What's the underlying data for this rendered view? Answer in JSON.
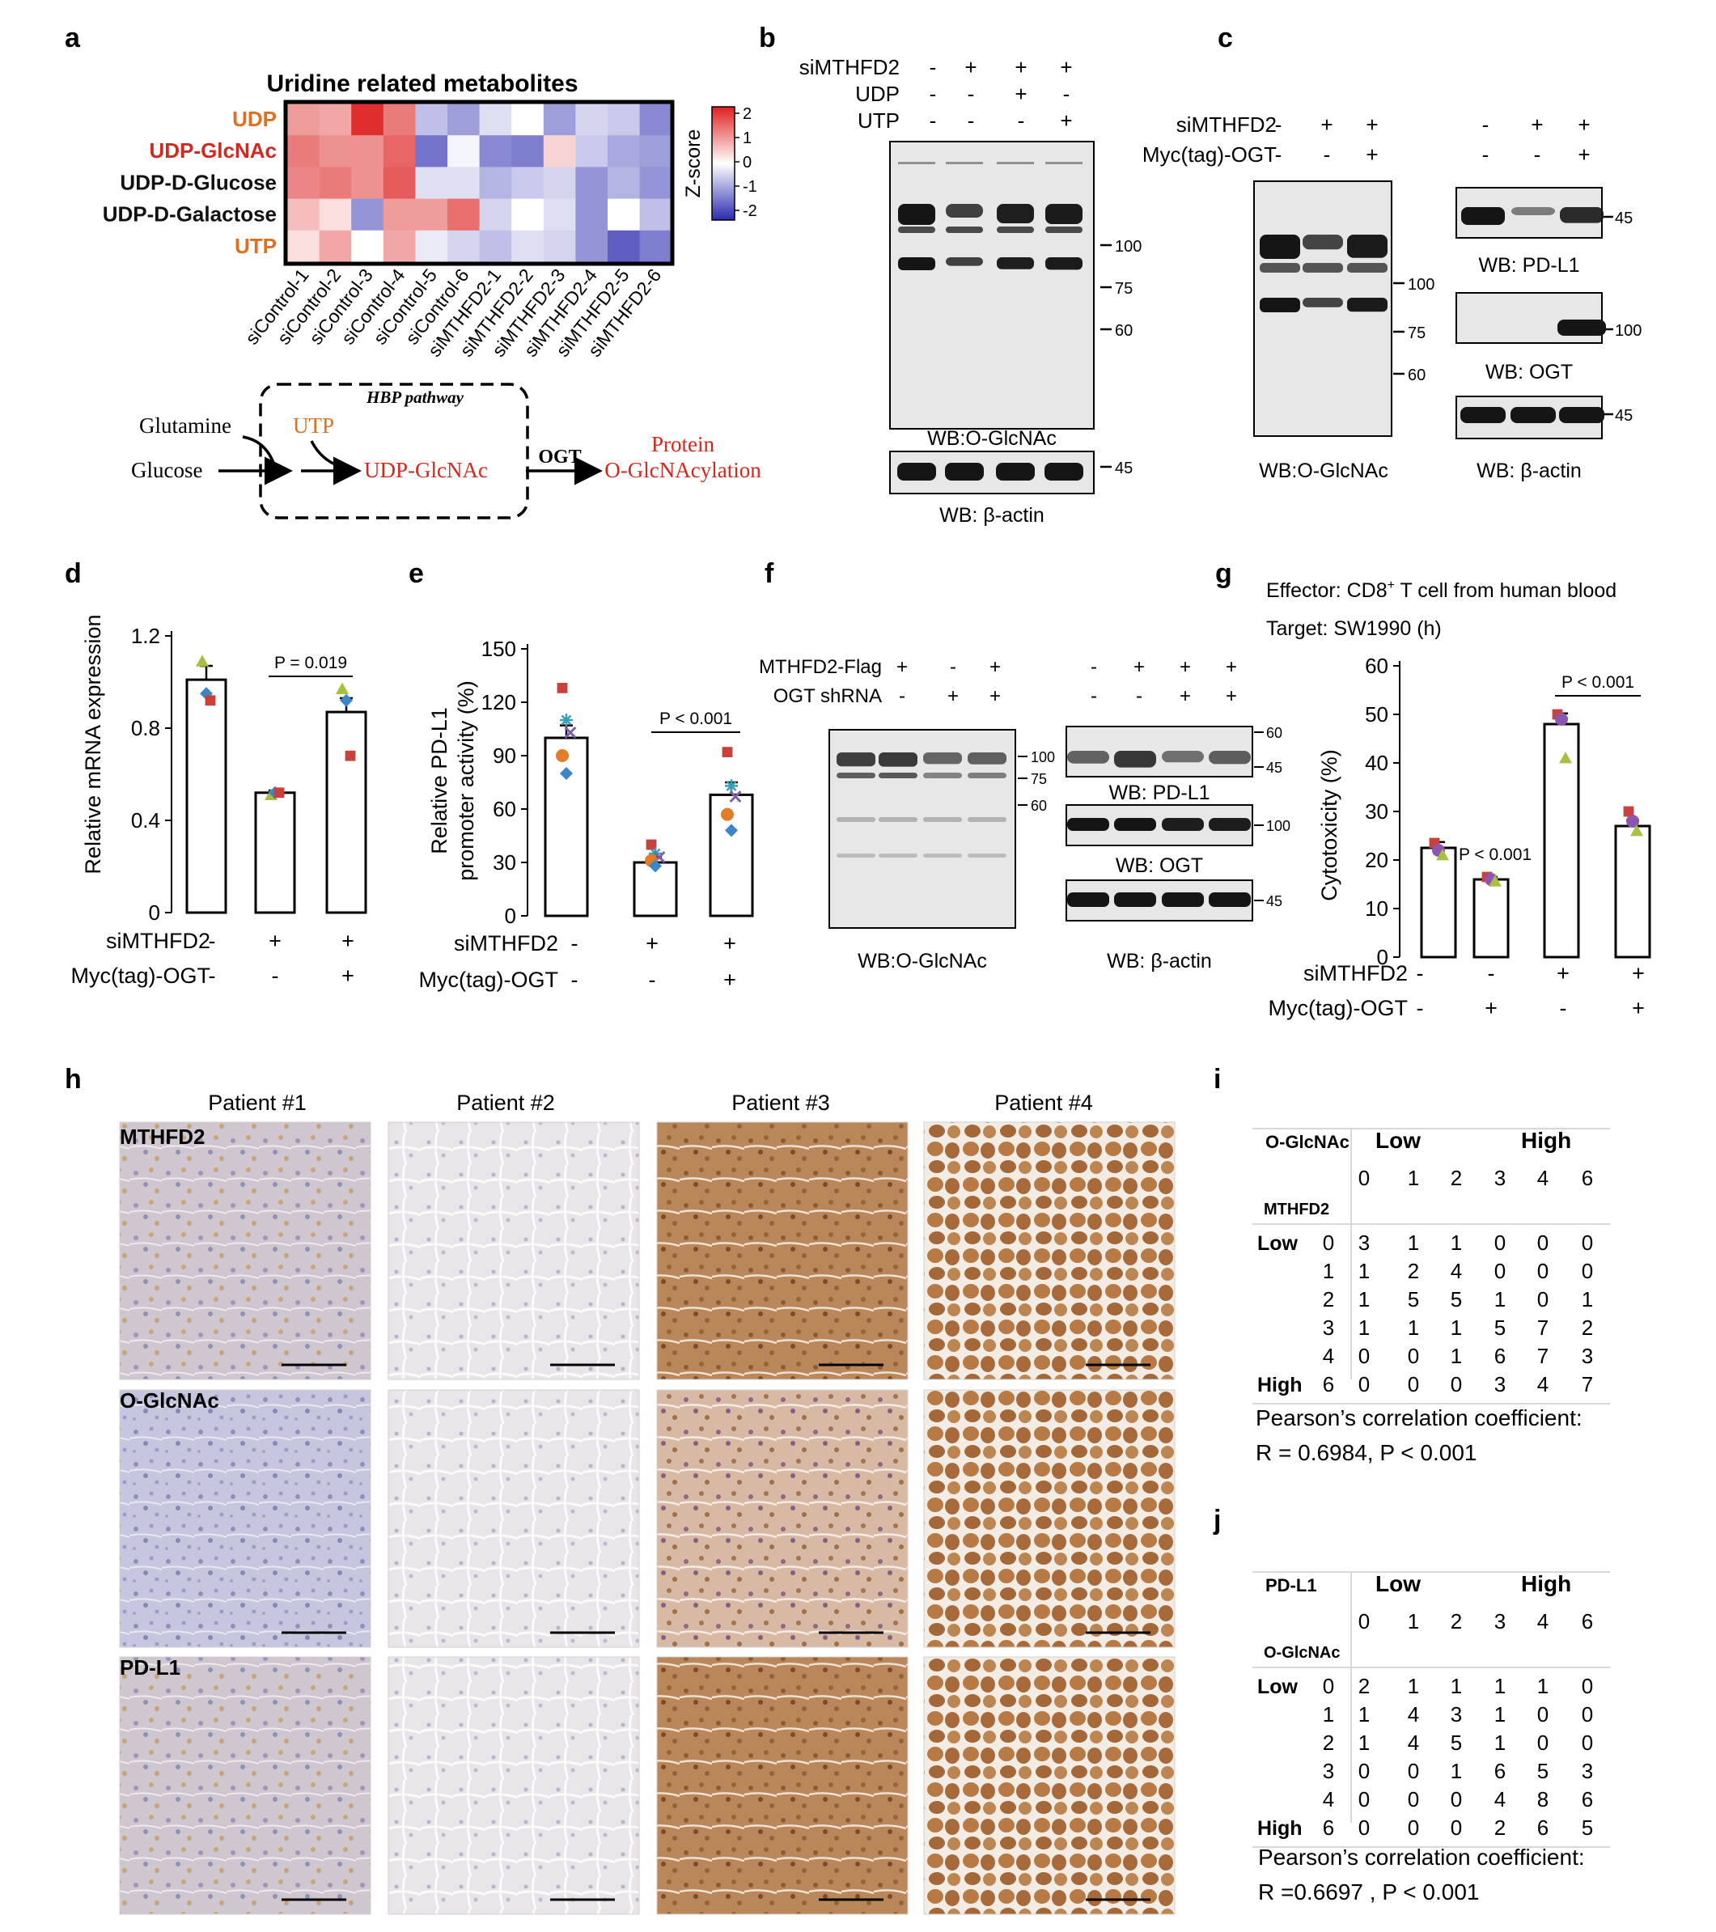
{
  "panel_labels": [
    "a",
    "b",
    "c",
    "d",
    "e",
    "f",
    "g",
    "h",
    "i",
    "j"
  ],
  "a": {
    "title": "Uridine related metabolites",
    "rows": [
      "UDP",
      "UDP-GlcNAc",
      "UDP-D-Glucose",
      "UDP-D-Galactose",
      "UTP"
    ],
    "row_colors": [
      "#e07020",
      "#d02a20",
      "#111111",
      "#111111",
      "#e07020"
    ],
    "columns": [
      "siControl-1",
      "siControl-2",
      "siControl-3",
      "siControl-4",
      "siControl-5",
      "siControl-6",
      "siMTHFD2-1",
      "siMTHFD2-2",
      "siMTHFD2-3",
      "siMTHFD2-4",
      "siMTHFD2-5",
      "siMTHFD2-6"
    ],
    "zscores": [
      [
        0.9,
        0.8,
        1.9,
        1.2,
        -0.6,
        -0.9,
        -0.3,
        0.0,
        -0.9,
        -0.4,
        -0.5,
        -1.1
      ],
      [
        1.2,
        1.0,
        1.0,
        1.4,
        -1.3,
        -0.1,
        -1.1,
        -1.2,
        0.4,
        -0.5,
        -0.8,
        -0.9
      ],
      [
        1.1,
        1.2,
        1.0,
        1.5,
        -0.3,
        -0.3,
        -0.7,
        -0.5,
        -0.4,
        -1.0,
        -0.7,
        -1.0
      ],
      [
        0.6,
        0.3,
        -1.0,
        0.9,
        0.9,
        1.3,
        -0.4,
        0.0,
        -0.3,
        -1.0,
        0.0,
        -0.6
      ],
      [
        0.3,
        0.8,
        0.0,
        0.8,
        -0.2,
        -0.4,
        -0.6,
        -0.3,
        -0.4,
        -1.0,
        -1.5,
        -1.2
      ]
    ],
    "legend_title": "Z-score",
    "legend_ticks": [
      "2",
      "1",
      "0",
      "-1",
      "-2"
    ],
    "pathway": {
      "box_label": "HBP pathway",
      "glutamine": "Glutamine",
      "glucose": "Glucose",
      "utp": "UTP",
      "udp_glcnac": "UDP-GlcNAc",
      "ogt": "OGT",
      "protein": "Protein",
      "oglcnacylation": "O-GlcNAcylation"
    }
  },
  "b": {
    "rows": [
      {
        "label": "siMTHFD2",
        "signs": [
          "-",
          "+",
          "+",
          "+"
        ]
      },
      {
        "label": "UDP",
        "signs": [
          "-",
          "-",
          "+",
          "-"
        ]
      },
      {
        "label": "UTP",
        "signs": [
          "-",
          "-",
          "-",
          "+"
        ]
      }
    ],
    "markers": [
      "100",
      "75",
      "60"
    ],
    "actin_marker": "45",
    "caption1": "WB:O-GlcNAc",
    "caption2": "WB: β-actin"
  },
  "c": {
    "rows": [
      {
        "label": "siMTHFD2",
        "signs": [
          "-",
          "+",
          "+"
        ]
      },
      {
        "label": "Myc(tag)-OGT",
        "signs": [
          "-",
          "-",
          "+"
        ]
      }
    ],
    "right_signs": [
      [
        "-",
        "+",
        "+"
      ],
      [
        "-",
        "-",
        "+"
      ]
    ],
    "markers": [
      "100",
      "75",
      "60"
    ],
    "pdl1_marker": "45",
    "ogt_marker": "100",
    "actin_marker": "45",
    "cap_oglcnac": "WB:O-GlcNAc",
    "cap_pdl1": "WB: PD-L1",
    "cap_ogt": "WB: OGT",
    "cap_actin": "WB: β-actin"
  },
  "d": {
    "ylabel": "Relative mRNA expression",
    "yticks": [
      "0",
      "0.4",
      "0.8",
      "1.2"
    ],
    "pvalue": "P = 0.019",
    "rows": [
      {
        "label": "siMTHFD2",
        "signs": [
          "-",
          "+",
          "+"
        ]
      },
      {
        "label": "Myc(tag)-OGT",
        "signs": [
          "-",
          "-",
          "+"
        ]
      }
    ]
  },
  "e": {
    "ylabel": "Relative PD-L1 promoter activity (%)",
    "ylabel_line1": "Relative PD-L1",
    "ylabel_line2": "promoter activity (%)",
    "yticks": [
      "0",
      "30",
      "60",
      "90",
      "120",
      "150"
    ],
    "pvalue": "P < 0.001",
    "rows": [
      {
        "label": "siMTHFD2",
        "signs": [
          "-",
          "+",
          "+"
        ]
      },
      {
        "label": "Myc(tag)-OGT",
        "signs": [
          "-",
          "-",
          "+"
        ]
      }
    ]
  },
  "f": {
    "rows": [
      {
        "label": "MTHFD2-Flag",
        "signs": [
          "+",
          "-",
          "+"
        ]
      },
      {
        "label": "OGT shRNA",
        "signs": [
          "-",
          "+",
          "+"
        ]
      }
    ],
    "right_signs": [
      [
        "-",
        "+",
        "+",
        "+"
      ],
      [
        "-",
        "-",
        "+",
        "+"
      ]
    ],
    "markers": [
      "100",
      "75",
      "60"
    ],
    "pdl1_markers": [
      "60",
      "45"
    ],
    "ogt_marker": "100",
    "actin_marker": "45",
    "cap_oglcnac": "WB:O-GlcNAc",
    "cap_pdl1": "WB: PD-L1",
    "cap_ogt": "WB: OGT",
    "cap_actin": "WB: β-actin"
  },
  "g": {
    "effector": "Effector: CD8",
    "effector_sup": "+",
    "effector_rest": " T cell from human blood",
    "target": "Target: SW1990 (h)",
    "ylabel": "Cytotoxicity (%)",
    "yticks": [
      "0",
      "10",
      "20",
      "30",
      "40",
      "50",
      "60"
    ],
    "p1": "P < 0.001",
    "p2": "P < 0.001",
    "rows": [
      {
        "label": "siMTHFD2",
        "signs": [
          "-",
          "-",
          "+",
          "+"
        ]
      },
      {
        "label": "Myc(tag)-OGT",
        "signs": [
          "-",
          "+",
          "-",
          "+"
        ]
      }
    ]
  },
  "h": {
    "patients": [
      "Patient #1",
      "Patient #2",
      "Patient #3",
      "Patient #4"
    ],
    "stains": [
      "MTHFD2",
      "O-GlcNAc",
      "PD-L1"
    ]
  },
  "i": {
    "corner_top": "O-GlcNAc",
    "corner_bottom": "MTHFD2",
    "low": "Low",
    "high": "High",
    "col_scores": [
      "0",
      "1",
      "2",
      "3",
      "4",
      "6"
    ],
    "row_labels": [
      "Low 0",
      "1",
      "2",
      "3",
      "4",
      "High 6"
    ],
    "row_prefix": [
      "Low",
      "",
      "",
      "",
      "",
      "High"
    ],
    "row_scores": [
      "0",
      "1",
      "2",
      "3",
      "4",
      "6"
    ],
    "cells": [
      [
        "3",
        "1",
        "1",
        "0",
        "0",
        "0"
      ],
      [
        "1",
        "2",
        "4",
        "0",
        "0",
        "0"
      ],
      [
        "1",
        "5",
        "5",
        "1",
        "0",
        "1"
      ],
      [
        "1",
        "1",
        "1",
        "5",
        "7",
        "2"
      ],
      [
        "0",
        "0",
        "1",
        "6",
        "7",
        "3"
      ],
      [
        "0",
        "0",
        "0",
        "3",
        "4",
        "7"
      ]
    ],
    "stat1": "Pearson’s correlation coefficient:",
    "stat2": "R = 0.6984,  P < 0.001"
  },
  "j": {
    "corner_top": "PD-L1",
    "corner_bottom": "O-GlcNAc",
    "low": "Low",
    "high": "High",
    "col_scores": [
      "0",
      "1",
      "2",
      "3",
      "4",
      "6"
    ],
    "row_prefix": [
      "Low",
      "",
      "",
      "",
      "",
      "High"
    ],
    "row_scores": [
      "0",
      "1",
      "2",
      "3",
      "4",
      "6"
    ],
    "cells": [
      [
        "2",
        "1",
        "1",
        "1",
        "1",
        "0"
      ],
      [
        "1",
        "4",
        "3",
        "1",
        "0",
        "0"
      ],
      [
        "1",
        "4",
        "5",
        "1",
        "0",
        "0"
      ],
      [
        "0",
        "0",
        "1",
        "6",
        "5",
        "3"
      ],
      [
        "0",
        "0",
        "0",
        "4",
        "8",
        "6"
      ],
      [
        "0",
        "0",
        "0",
        "2",
        "6",
        "5"
      ]
    ],
    "stat1": "Pearson’s correlation coefficient:",
    "stat2": "R =0.6697 ,  P < 0.001"
  },
  "chart_data": [
    {
      "type": "heatmap",
      "title": "Uridine related metabolites",
      "rows": [
        "UDP",
        "UDP-GlcNAc",
        "UDP-D-Glucose",
        "UDP-D-Galactose",
        "UTP"
      ],
      "columns": [
        "siControl-1",
        "siControl-2",
        "siControl-3",
        "siControl-4",
        "siControl-5",
        "siControl-6",
        "siMTHFD2-1",
        "siMTHFD2-2",
        "siMTHFD2-3",
        "siMTHFD2-4",
        "siMTHFD2-5",
        "siMTHFD2-6"
      ],
      "legend": "Z-score",
      "range": [
        -2,
        2
      ]
    },
    {
      "type": "bar",
      "ylabel": "Relative mRNA expression",
      "ylim": [
        0,
        1.2
      ],
      "categories": [
        "1",
        "2",
        "3"
      ],
      "values": [
        1.01,
        0.52,
        0.87
      ],
      "errors": [
        0.06,
        0.01,
        0.06
      ],
      "points": [
        [
          1.09,
          0.95,
          0.92
        ],
        [
          0.51,
          0.52,
          0.52
        ],
        [
          0.97,
          0.92,
          0.68
        ]
      ]
    },
    {
      "type": "bar",
      "ylabel": "Relative PD-L1 promoter activity (%)",
      "ylim": [
        0,
        150
      ],
      "categories": [
        "1",
        "2",
        "3"
      ],
      "values": [
        100,
        30,
        68
      ],
      "errors": [
        7,
        3,
        7
      ],
      "points": [
        [
          128,
          110,
          103,
          90,
          80
        ],
        [
          40,
          35,
          33,
          31,
          28
        ],
        [
          92,
          73,
          67,
          57,
          48
        ]
      ]
    },
    {
      "type": "bar",
      "ylabel": "Cytotoxicity (%)",
      "ylim": [
        0,
        60
      ],
      "categories": [
        "1",
        "2",
        "3",
        "4"
      ],
      "values": [
        22.5,
        16,
        48,
        27
      ],
      "errors": [
        1.2,
        0.5,
        2.2,
        1.2
      ],
      "points": [
        [
          23.5,
          22,
          21
        ],
        [
          16.5,
          16,
          15.6
        ],
        [
          50,
          49,
          41
        ],
        [
          30,
          28,
          26
        ]
      ]
    }
  ]
}
